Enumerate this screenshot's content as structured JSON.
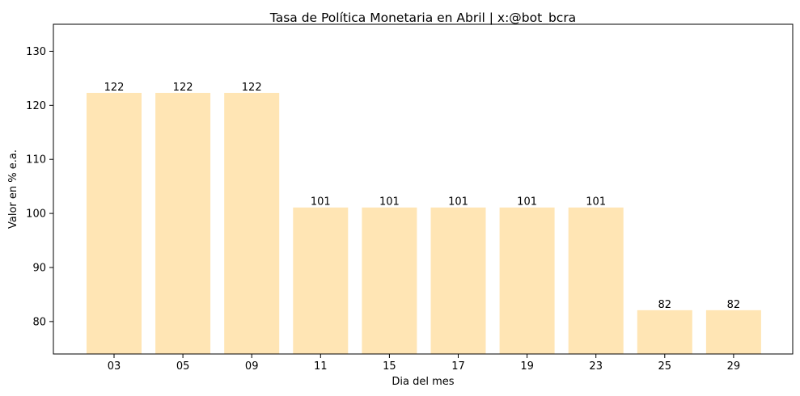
{
  "chart_data": {
    "type": "bar",
    "title": "Tasa de Política Monetaria en Abril | x:@bot_bcra",
    "xlabel": "Dia del mes",
    "ylabel": "Valor en % e.a.",
    "categories": [
      "03",
      "05",
      "09",
      "11",
      "15",
      "17",
      "19",
      "23",
      "25",
      "29"
    ],
    "values": [
      122.3,
      122.3,
      122.3,
      101.1,
      101.1,
      101.1,
      101.1,
      101.1,
      82.1,
      82.1
    ],
    "data_labels": [
      "122",
      "122",
      "122",
      "101",
      "101",
      "101",
      "101",
      "101",
      "82",
      "82"
    ],
    "ylim": [
      74,
      135
    ],
    "yticks": [
      80,
      90,
      100,
      110,
      120,
      130
    ],
    "ytick_labels": [
      "80",
      "90",
      "100",
      "110",
      "120",
      "130"
    ],
    "bar_color": "#ffe5b4",
    "grid": false,
    "legend": "none"
  }
}
